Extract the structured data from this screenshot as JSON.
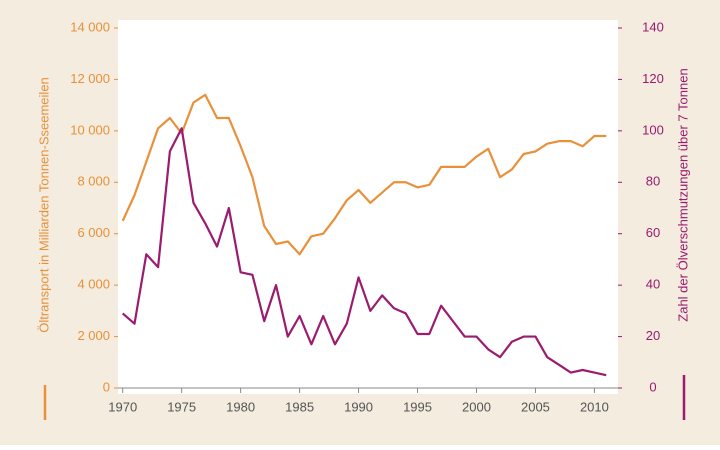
{
  "chart_data": {
    "type": "line",
    "x": [
      1970,
      1971,
      1972,
      1973,
      1974,
      1975,
      1976,
      1977,
      1978,
      1979,
      1980,
      1981,
      1982,
      1983,
      1984,
      1985,
      1986,
      1987,
      1988,
      1989,
      1990,
      1991,
      1992,
      1993,
      1994,
      1995,
      1996,
      1997,
      1998,
      1999,
      2000,
      2001,
      2002,
      2003,
      2004,
      2005,
      2006,
      2007,
      2008,
      2009,
      2010,
      2011
    ],
    "series": [
      {
        "name": "Öltransport in Milliarden Tonnen-Sseemeilen",
        "color": "#e8913a",
        "axis": "y",
        "values": [
          6500,
          7500,
          8800,
          10100,
          10500,
          9900,
          11100,
          11400,
          10500,
          10500,
          9400,
          8200,
          6300,
          5600,
          5700,
          5200,
          5900,
          6000,
          6600,
          7300,
          7700,
          7200,
          7600,
          8000,
          8000,
          7800,
          7900,
          8600,
          8600,
          8600,
          9000,
          9300,
          8200,
          8500,
          9100,
          9200,
          9500,
          9600,
          9600,
          9400,
          9800,
          9800
        ]
      },
      {
        "name": "Zahl der Ölverschmutzungen über 7 Tonnen",
        "color": "#9b1b6e",
        "axis": "y2",
        "values": [
          29,
          25,
          52,
          47,
          92,
          101,
          72,
          64,
          55,
          70,
          45,
          44,
          26,
          40,
          20,
          28,
          17,
          28,
          17,
          25,
          43,
          30,
          36,
          31,
          29,
          21,
          21,
          32,
          26,
          20,
          20,
          15,
          12,
          18,
          20,
          20,
          12,
          9,
          6,
          7,
          6,
          5
        ]
      }
    ],
    "xlim": [
      1969.6,
      2012
    ],
    "xticks": [
      1970,
      1975,
      1980,
      1985,
      1990,
      1995,
      2000,
      2005,
      2010
    ],
    "ylim": [
      0,
      14000
    ],
    "yticks": [
      0,
      {
        "value": 2000,
        "label": "2 000"
      },
      {
        "value": 4000,
        "label": "4 000"
      },
      {
        "value": 6000,
        "label": "6 000"
      },
      {
        "value": 8000,
        "label": "8 000"
      },
      {
        "value": 10000,
        "label": "10 000"
      },
      {
        "value": 12000,
        "label": "12 000"
      },
      {
        "value": 14000,
        "label": "14 000"
      }
    ],
    "y2lim": [
      0,
      140
    ],
    "y2ticks": [
      0,
      20,
      40,
      60,
      80,
      100,
      120,
      140
    ]
  }
}
